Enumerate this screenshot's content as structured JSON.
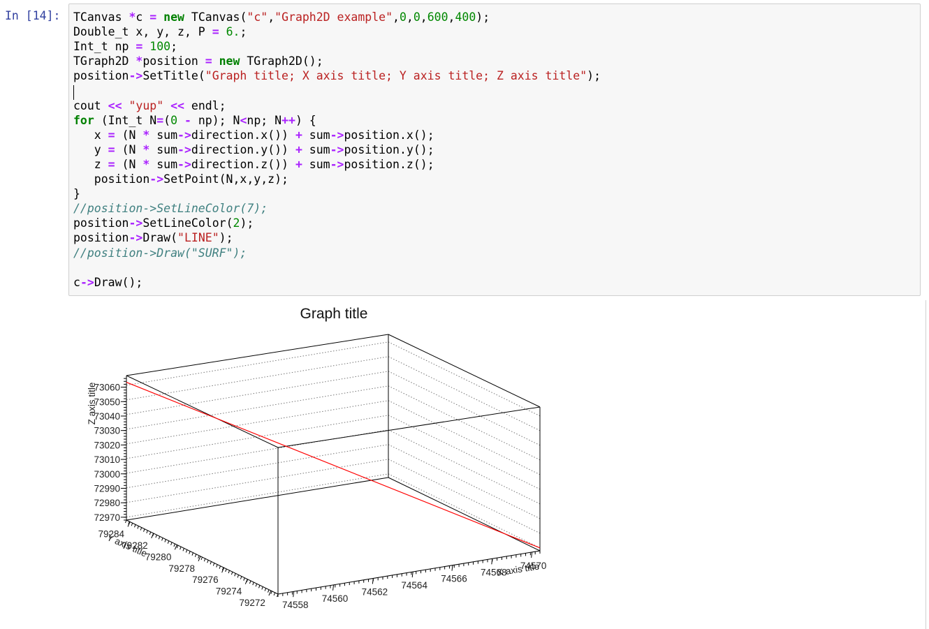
{
  "cell": {
    "prompt": "In [14]:",
    "lines": [
      [
        [
          "TCanvas ",
          ""
        ],
        [
          "*",
          "op"
        ],
        [
          "c ",
          ""
        ],
        [
          "=",
          "op"
        ],
        [
          " ",
          ""
        ],
        [
          "new",
          "kw"
        ],
        [
          " TCanvas(",
          ""
        ],
        [
          "\"c\"",
          "str"
        ],
        [
          ",",
          ""
        ],
        [
          "\"Graph2D example\"",
          "str"
        ],
        [
          ",",
          ""
        ],
        [
          "0",
          "num"
        ],
        [
          ",",
          ""
        ],
        [
          "0",
          "num"
        ],
        [
          ",",
          ""
        ],
        [
          "600",
          "num"
        ],
        [
          ",",
          ""
        ],
        [
          "400",
          "num"
        ],
        [
          ");",
          ""
        ]
      ],
      [
        [
          "Double_t x, y, z, P ",
          ""
        ],
        [
          "=",
          "op"
        ],
        [
          " ",
          ""
        ],
        [
          "6.",
          "num"
        ],
        [
          ";",
          ""
        ]
      ],
      [
        [
          "Int_t np ",
          ""
        ],
        [
          "=",
          "op"
        ],
        [
          " ",
          ""
        ],
        [
          "100",
          "num"
        ],
        [
          ";",
          ""
        ]
      ],
      [
        [
          "TGraph2D ",
          ""
        ],
        [
          "*",
          "op"
        ],
        [
          "position ",
          ""
        ],
        [
          "=",
          "op"
        ],
        [
          " ",
          ""
        ],
        [
          "new",
          "kw"
        ],
        [
          " TGraph2D();",
          ""
        ]
      ],
      [
        [
          "position",
          ""
        ],
        [
          "->",
          "op"
        ],
        [
          "SetTitle(",
          ""
        ],
        [
          "\"Graph title; X axis title; Y axis title; Z axis title\"",
          "str"
        ],
        [
          ");",
          ""
        ]
      ],
      [],
      [
        [
          "cout ",
          ""
        ],
        [
          "<<",
          "op"
        ],
        [
          " ",
          ""
        ],
        [
          "\"yup\"",
          "str"
        ],
        [
          " ",
          ""
        ],
        [
          "<<",
          "op"
        ],
        [
          " endl;",
          ""
        ]
      ],
      [
        [
          "for",
          "kw"
        ],
        [
          " (Int_t N",
          ""
        ],
        [
          "=",
          "op"
        ],
        [
          "(",
          ""
        ],
        [
          "0",
          "num"
        ],
        [
          " ",
          ""
        ],
        [
          "-",
          "op"
        ],
        [
          " np); N",
          ""
        ],
        [
          "<",
          "op"
        ],
        [
          "np; N",
          ""
        ],
        [
          "++",
          "op"
        ],
        [
          ") {",
          ""
        ]
      ],
      [
        [
          "   x ",
          ""
        ],
        [
          "=",
          "op"
        ],
        [
          " (N ",
          ""
        ],
        [
          "*",
          "op"
        ],
        [
          " sum",
          ""
        ],
        [
          "->",
          "op"
        ],
        [
          "direction.x()) ",
          ""
        ],
        [
          "+",
          "op"
        ],
        [
          " sum",
          ""
        ],
        [
          "->",
          "op"
        ],
        [
          "position.x();",
          ""
        ]
      ],
      [
        [
          "   y ",
          ""
        ],
        [
          "=",
          "op"
        ],
        [
          " (N ",
          ""
        ],
        [
          "*",
          "op"
        ],
        [
          " sum",
          ""
        ],
        [
          "->",
          "op"
        ],
        [
          "direction.y()) ",
          ""
        ],
        [
          "+",
          "op"
        ],
        [
          " sum",
          ""
        ],
        [
          "->",
          "op"
        ],
        [
          "position.y();",
          ""
        ]
      ],
      [
        [
          "   z ",
          ""
        ],
        [
          "=",
          "op"
        ],
        [
          " (N ",
          ""
        ],
        [
          "*",
          "op"
        ],
        [
          " sum",
          ""
        ],
        [
          "->",
          "op"
        ],
        [
          "direction.z()) ",
          ""
        ],
        [
          "+",
          "op"
        ],
        [
          " sum",
          ""
        ],
        [
          "->",
          "op"
        ],
        [
          "position.z();",
          ""
        ]
      ],
      [
        [
          "   position",
          ""
        ],
        [
          "->",
          "op"
        ],
        [
          "SetPoint(N,x,y,z);",
          ""
        ]
      ],
      [
        [
          "}",
          ""
        ]
      ],
      [
        [
          "//position->SetLineColor(7);",
          "cm"
        ]
      ],
      [
        [
          "position",
          ""
        ],
        [
          "->",
          "op"
        ],
        [
          "SetLineColor(",
          ""
        ],
        [
          "2",
          "num"
        ],
        [
          ");",
          ""
        ]
      ],
      [
        [
          "position",
          ""
        ],
        [
          "->",
          "op"
        ],
        [
          "Draw(",
          ""
        ],
        [
          "\"LINE\"",
          "str"
        ],
        [
          ");",
          ""
        ]
      ],
      [
        [
          "//position->Draw(\"SURF\");",
          "cm"
        ]
      ],
      [],
      [
        [
          "c",
          ""
        ],
        [
          "->",
          "op"
        ],
        [
          "Draw();",
          ""
        ]
      ]
    ]
  },
  "chart_data": {
    "type": "line",
    "title": "Graph title",
    "xlabel": "X axis title",
    "ylabel": "Y axis title",
    "zlabel": "Z axis title",
    "x_ticks": [
      "74558",
      "74560",
      "74562",
      "74564",
      "74566",
      "74568",
      "74570"
    ],
    "y_ticks": [
      "79272",
      "79274",
      "79276",
      "79278",
      "79280",
      "79282",
      "79284"
    ],
    "z_ticks": [
      "72970",
      "72980",
      "72990",
      "73000",
      "73010",
      "73020",
      "73030",
      "73040",
      "73050",
      "73060"
    ],
    "xlim": [
      74557.2,
      74570.4
    ],
    "ylim": [
      79271.4,
      79284.3
    ],
    "zlim": [
      72968,
      73068
    ],
    "series": [
      {
        "color": "#ff0000",
        "points": [
          {
            "x": 74570.4,
            "y": 79271.4,
            "z": 72970.0
          },
          {
            "x": 74557.2,
            "y": 79284.3,
            "z": 73062.0
          }
        ]
      }
    ],
    "grid": true
  },
  "colors": {
    "prompt": "#303f9f",
    "keyword": "#008000",
    "operator": "#aa22ff",
    "string": "#ba2121",
    "number": "#008800",
    "comment": "#408080",
    "series": "#ff0000"
  }
}
